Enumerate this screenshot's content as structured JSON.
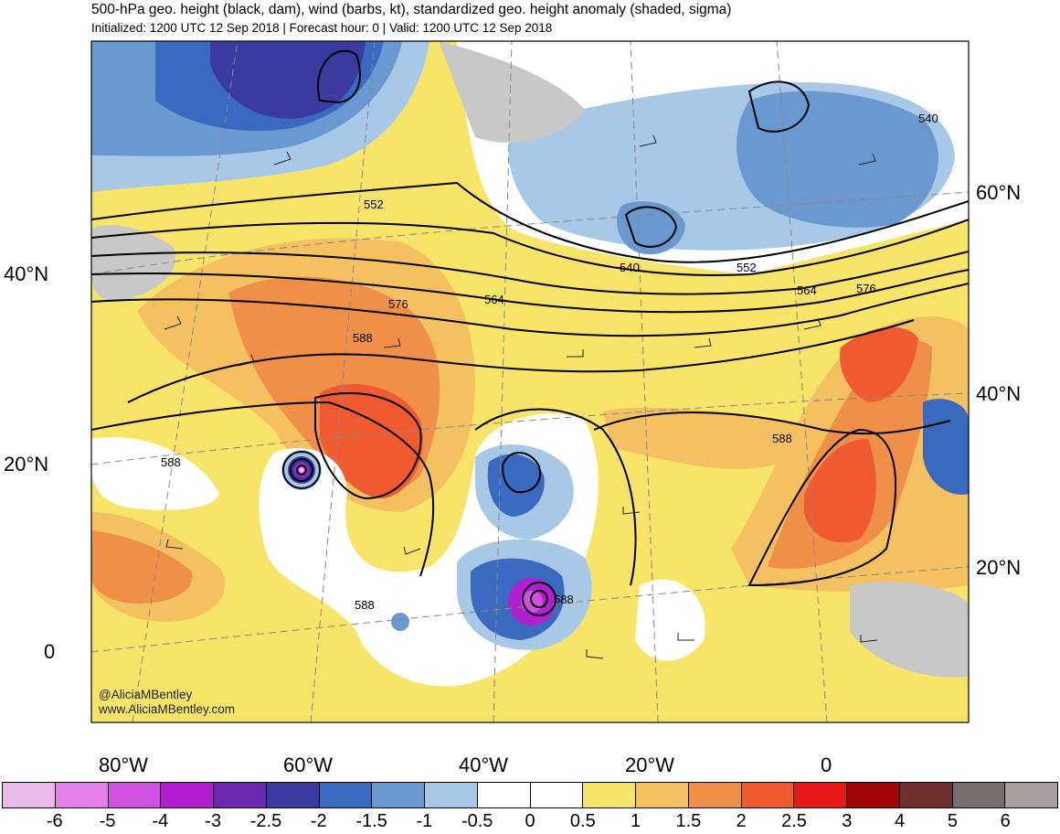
{
  "header": {
    "title": "500-hPa geo. height (black, dam), wind (barbs, kt), standardized geo. height anomaly (shaded, sigma)",
    "subtitle": "Initialized: 1200 UTC 12 Sep 2018 | Forecast hour: 0 | Valid: 1200 UTC 12 Sep 2018"
  },
  "map": {
    "left_lat_labels": [
      "40°N",
      "20°N",
      "0"
    ],
    "right_lat_labels": [
      "60°N",
      "40°N",
      "20°N"
    ],
    "bottom_lon_labels": [
      "80°W",
      "60°W",
      "40°W",
      "20°W",
      "0"
    ],
    "contour_labels": [
      "552",
      "540",
      "576",
      "564",
      "588",
      "540",
      "552",
      "564",
      "576",
      "588",
      "588",
      "588",
      "588"
    ],
    "credits": [
      "@AliciaMBentley",
      "www.AliciaMBentley.com"
    ]
  },
  "colorbar": {
    "tick_labels": [
      "-6",
      "-5",
      "-4",
      "-3",
      "-2.5",
      "-2",
      "-1.5",
      "-1",
      "-0.5",
      "0",
      "0.5",
      "1",
      "1.5",
      "2",
      "2.5",
      "3",
      "4",
      "5",
      "6"
    ],
    "colors": [
      "#e8b8e8",
      "#e080e8",
      "#d050e0",
      "#b020d0",
      "#6a28b0",
      "#3a3aa0",
      "#3a6ac0",
      "#6a98d0",
      "#a8c8e8",
      "#ffffff",
      "#ffffff",
      "#f8e468",
      "#f4c060",
      "#f09048",
      "#f05a30",
      "#e81818",
      "#a00808",
      "#703030",
      "#787070",
      "#a8a0a0"
    ]
  }
}
